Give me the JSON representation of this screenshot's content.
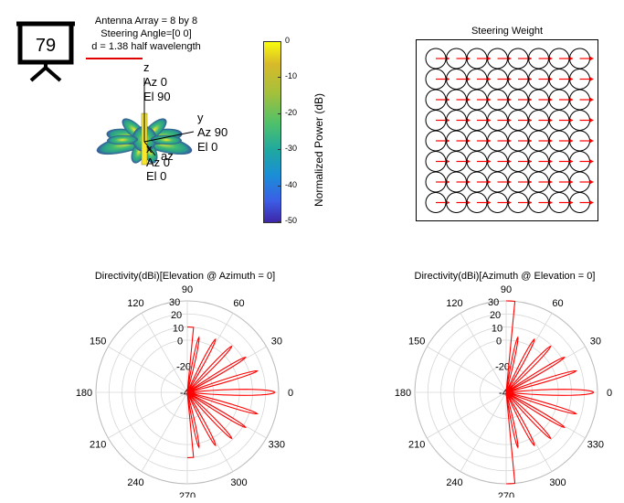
{
  "badge": {
    "number": "79"
  },
  "header": {
    "line1": "Antenna Array = 8 by 8",
    "line2": "Steering Angle=[0 0]",
    "line3": "d = 1.38 half wavelength"
  },
  "pattern3d": {
    "z_axis": [
      "z",
      "Az 0",
      "El 90"
    ],
    "y_axis": [
      "y",
      "Az 90",
      "El 0"
    ],
    "x_axis": [
      "x",
      "Az 0",
      "El 0"
    ],
    "az_label": "az",
    "colors": {
      "yellow": "#f9e62b",
      "green": "#3fbc73",
      "teal": "#2a9c8c",
      "blue": "#3b4fa8"
    }
  },
  "colorbar": {
    "label": "Normalized Power (dB)",
    "ticks": [
      "0",
      "-10",
      "-20",
      "-30",
      "-40",
      "-50"
    ],
    "min": -50,
    "max": 0
  },
  "steering": {
    "title": "Steering Weight",
    "rows": 8,
    "cols": 8,
    "arrow_color": "#ff0000"
  },
  "chart_data": [
    {
      "type": "polar-line",
      "title": "Directivity(dBi)[Elevation @ Azimuth = 0]",
      "angle_ticks": [
        "0",
        "30",
        "60",
        "90",
        "120",
        "150",
        "180",
        "210",
        "240",
        "270",
        "300",
        "330"
      ],
      "radial_ticks": [
        "-40",
        "-20",
        "0",
        "10",
        "20",
        "30"
      ],
      "radial_range": [
        -40,
        30
      ],
      "main_lobe": {
        "angle_deg": 0,
        "peak_dbi": 27
      },
      "lobes": [
        {
          "angle": 0,
          "peak": 27,
          "width": 11
        },
        {
          "angle": 17,
          "peak": 16,
          "width": 7
        },
        {
          "angle": 31,
          "peak": 12,
          "width": 7
        },
        {
          "angle": 46,
          "peak": 9,
          "width": 8
        },
        {
          "angle": 62,
          "peak": 6,
          "width": 8
        },
        {
          "angle": 78,
          "peak": 3,
          "width": 7
        },
        {
          "angle": -17,
          "peak": 16,
          "width": 7
        },
        {
          "angle": -31,
          "peak": 12,
          "width": 7
        },
        {
          "angle": -46,
          "peak": 9,
          "width": 8
        },
        {
          "angle": -62,
          "peak": 6,
          "width": 8
        },
        {
          "angle": -78,
          "peak": 3,
          "width": 7
        }
      ],
      "edge_dbi": 10,
      "line_color": "#ff0000"
    },
    {
      "type": "polar-line",
      "title": "Directivity(dBi)[Azimuth @ Elevation = 0]",
      "angle_ticks": [
        "0",
        "30",
        "60",
        "90",
        "120",
        "150",
        "180",
        "210",
        "240",
        "270",
        "300",
        "330"
      ],
      "radial_ticks": [
        "-40",
        "-20",
        "0",
        "10",
        "20",
        "30"
      ],
      "radial_range": [
        -40,
        30
      ],
      "main_lobe": {
        "angle_deg": 0,
        "peak_dbi": 27
      },
      "lobes": [
        {
          "angle": 0,
          "peak": 27,
          "width": 11
        },
        {
          "angle": 17,
          "peak": 16,
          "width": 7
        },
        {
          "angle": 31,
          "peak": 12,
          "width": 7
        },
        {
          "angle": 46,
          "peak": 9,
          "width": 8
        },
        {
          "angle": 62,
          "peak": 6,
          "width": 8
        },
        {
          "angle": 78,
          "peak": 3,
          "width": 7
        },
        {
          "angle": -17,
          "peak": 16,
          "width": 7
        },
        {
          "angle": -31,
          "peak": 12,
          "width": 7
        },
        {
          "angle": -46,
          "peak": 9,
          "width": 8
        },
        {
          "angle": -62,
          "peak": 6,
          "width": 8
        },
        {
          "angle": -78,
          "peak": 3,
          "width": 7
        }
      ],
      "edge_dbi": 30,
      "line_color": "#ff0000"
    }
  ]
}
